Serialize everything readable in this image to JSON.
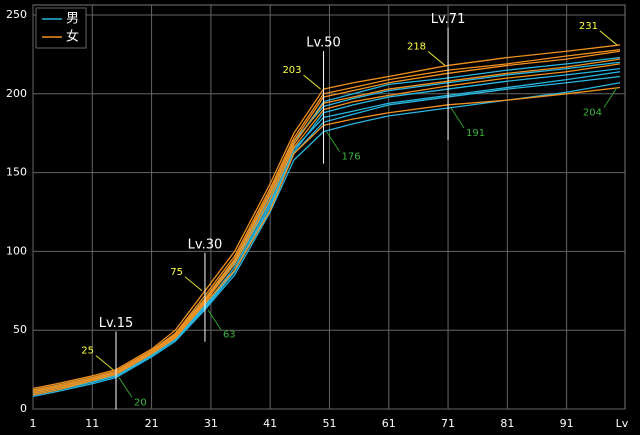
{
  "chart_data": {
    "type": "line",
    "xlabel": "Lv",
    "x": [
      1,
      5,
      11,
      15,
      21,
      25,
      30,
      35,
      41,
      45,
      50,
      55,
      61,
      71,
      81,
      91,
      100
    ],
    "xlim": [
      1,
      100
    ],
    "xticks": [
      1,
      11,
      21,
      31,
      41,
      51,
      61,
      71,
      81,
      91
    ],
    "ylim": [
      0,
      250
    ],
    "yticks": [
      0,
      50,
      100,
      150,
      200,
      250
    ],
    "grid": true,
    "legend": "top-left",
    "series": [
      {
        "name": "男",
        "color": "#29b6e0",
        "lines": [
          [
            8,
            11,
            16,
            20,
            33,
            43,
            63,
            85,
            125,
            158,
            176,
            181,
            186,
            191,
            196,
            201,
            207
          ],
          [
            10,
            13,
            18,
            22,
            35,
            46,
            66,
            90,
            132,
            165,
            185,
            189,
            194,
            199,
            204,
            209,
            214
          ],
          [
            12,
            15,
            20,
            23,
            37,
            48,
            70,
            95,
            138,
            170,
            192,
            197,
            202,
            207,
            212,
            216,
            220
          ],
          [
            9,
            12,
            17,
            21,
            34,
            44,
            64,
            87,
            128,
            162,
            182,
            187,
            193,
            198,
            203,
            207,
            211
          ],
          [
            11,
            14,
            19,
            22,
            36,
            47,
            68,
            93,
            135,
            168,
            195,
            200,
            206,
            210,
            215,
            219,
            223
          ],
          [
            10,
            13,
            18,
            21,
            34,
            45,
            65,
            88,
            130,
            163,
            188,
            193,
            198,
            203,
            208,
            212,
            216
          ]
        ]
      },
      {
        "name": "女",
        "color": "#f0901e",
        "lines": [
          [
            13,
            16,
            21,
            25,
            38,
            50,
            75,
            100,
            143,
            175,
            203,
            207,
            211,
            218,
            223,
            227,
            231
          ],
          [
            11,
            14,
            19,
            23,
            36,
            47,
            70,
            95,
            138,
            170,
            198,
            202,
            207,
            213,
            218,
            222,
            227
          ],
          [
            9,
            12,
            18,
            22,
            35,
            45,
            67,
            88,
            126,
            162,
            180,
            184,
            188,
            193,
            196,
            200,
            204
          ],
          [
            12,
            15,
            20,
            24,
            37,
            48,
            72,
            97,
            140,
            172,
            200,
            204,
            209,
            215,
            219,
            224,
            228
          ],
          [
            10,
            13,
            18,
            22,
            35,
            46,
            68,
            92,
            133,
            166,
            190,
            195,
            199,
            205,
            210,
            214,
            219
          ],
          [
            11,
            14,
            19,
            23,
            36,
            47,
            69,
            94,
            136,
            168,
            194,
            198,
            203,
            208,
            213,
            217,
            222
          ]
        ]
      }
    ],
    "annotations": [
      {
        "label": "Lv.15",
        "x": 15,
        "max": 25,
        "min": 20
      },
      {
        "label": "Lv.30",
        "x": 30,
        "max": 75,
        "min": 63
      },
      {
        "label": "Lv.50",
        "x": 50,
        "max": 203,
        "min": 176
      },
      {
        "label": "Lv.71",
        "x": 71,
        "max": 218,
        "min": 191
      },
      {
        "x": 100,
        "max": 231,
        "min": 204
      }
    ]
  }
}
